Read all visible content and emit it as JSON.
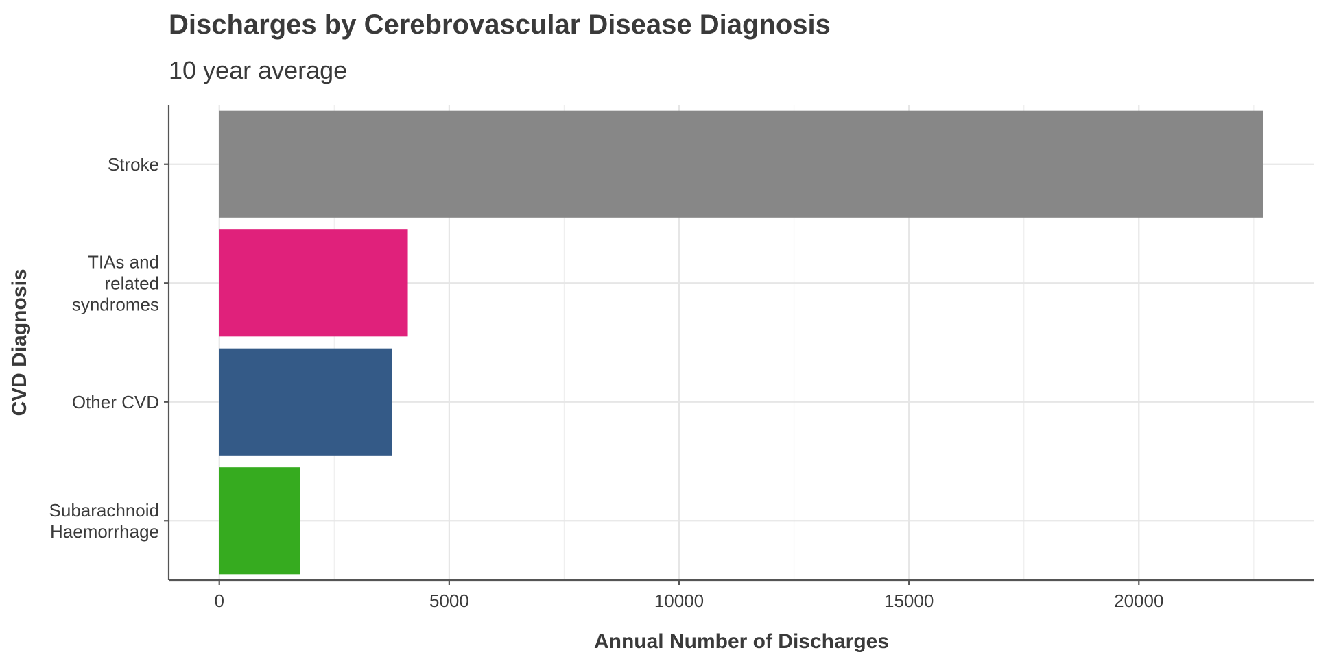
{
  "chart_data": {
    "type": "bar",
    "orientation": "horizontal",
    "title": "Discharges by Cerebrovascular Disease Diagnosis",
    "subtitle": "10 year average",
    "xlabel": "Annual Number of Discharges",
    "ylabel": "CVD Diagnosis",
    "categories": [
      [
        "Stroke"
      ],
      [
        "TIAs and",
        "related",
        "syndromes"
      ],
      [
        "Other CVD"
      ],
      [
        "Subarachnoid",
        "Haemorrhage"
      ]
    ],
    "values": [
      22700,
      4100,
      3760,
      1750
    ],
    "colors": [
      "#878787",
      "#e0217b",
      "#345a87",
      "#36ab1f"
    ],
    "xlim": [
      -1100,
      23800
    ],
    "xticks": [
      0,
      5000,
      10000,
      15000,
      20000
    ],
    "xtick_labels": [
      "0",
      "5000",
      "10000",
      "15000",
      "20000"
    ],
    "grid": true,
    "legend": "none"
  }
}
